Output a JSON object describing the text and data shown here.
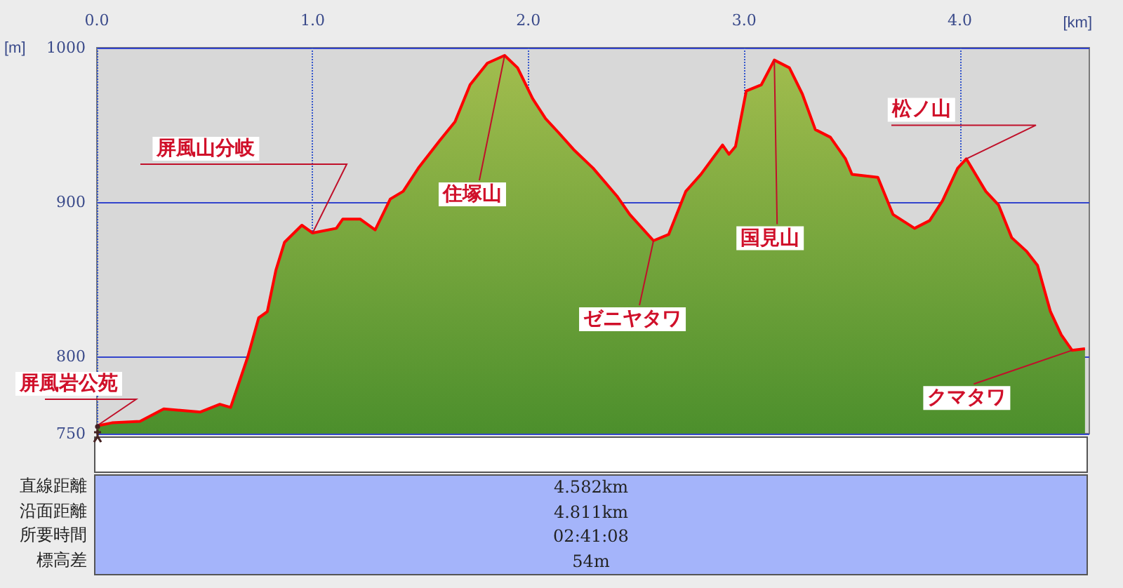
{
  "chart_data": {
    "type": "area",
    "xlabel": "[km]",
    "ylabel": "[m]",
    "xlim": [
      0,
      4.6
    ],
    "xticks": [
      {
        "value": 0,
        "label": "0.0"
      },
      {
        "value": 1,
        "label": "1.0"
      },
      {
        "value": 2,
        "label": "2.0"
      },
      {
        "value": 3,
        "label": "3.0"
      },
      {
        "value": 4,
        "label": "4.0"
      }
    ],
    "ylim": [
      750,
      1000
    ],
    "yticks": [
      750,
      800,
      900,
      1000
    ],
    "grid": true,
    "marker": "none",
    "series": [
      {
        "color": "#ff0000",
        "x": [
          0,
          0.07,
          0.2,
          0.31,
          0.48,
          0.57,
          0.62,
          0.7,
          0.75,
          0.79,
          0.83,
          0.87,
          0.95,
          1.0,
          1.11,
          1.14,
          1.22,
          1.29,
          1.36,
          1.42,
          1.49,
          1.59,
          1.66,
          1.73,
          1.81,
          1.89,
          1.95,
          2.02,
          2.08,
          2.14,
          2.21,
          2.3,
          2.41,
          2.47,
          2.58,
          2.65,
          2.73,
          2.8,
          2.9,
          2.93,
          2.96,
          3.01,
          3.08,
          3.14,
          3.21,
          3.27,
          3.33,
          3.4,
          3.47,
          3.5,
          3.62,
          3.69,
          3.79,
          3.86,
          3.92,
          3.99,
          4.03,
          4.12,
          4.18,
          4.24,
          4.31,
          4.36,
          4.42,
          4.47,
          4.52,
          4.58
        ],
        "values": [
          755,
          757,
          758,
          766,
          764,
          769,
          767,
          800,
          825,
          829,
          856,
          874,
          885,
          880,
          883,
          889,
          889,
          882,
          902,
          907,
          922,
          940,
          952,
          976,
          990,
          995,
          987,
          967,
          954,
          945,
          934,
          922,
          904,
          892,
          875,
          879,
          907,
          918,
          937,
          931,
          936,
          972,
          976,
          992,
          987,
          970,
          947,
          942,
          928,
          918,
          916,
          892,
          883,
          888,
          901,
          922,
          928,
          907,
          898,
          877,
          868,
          859,
          829,
          814,
          804,
          805
        ]
      }
    ],
    "annotations": [
      {
        "text": "屏風岩公苑",
        "x": 0,
        "y": 755
      },
      {
        "text": "屏風山分岐",
        "x": 1.0,
        "y": 880
      },
      {
        "text": "住塚山",
        "x": 1.89,
        "y": 995
      },
      {
        "text": "ゼニヤタワ",
        "x": 2.58,
        "y": 875
      },
      {
        "text": "国見山",
        "x": 3.14,
        "y": 992
      },
      {
        "text": "松ノ山",
        "x": 4.03,
        "y": 928
      },
      {
        "text": "クマタワ",
        "x": 4.52,
        "y": 804
      },
      "直線距離",
      "4.582km",
      "沿面距離",
      "4.811km",
      "所要時間",
      "02:41:08",
      "標高差",
      "54m"
    ]
  }
}
